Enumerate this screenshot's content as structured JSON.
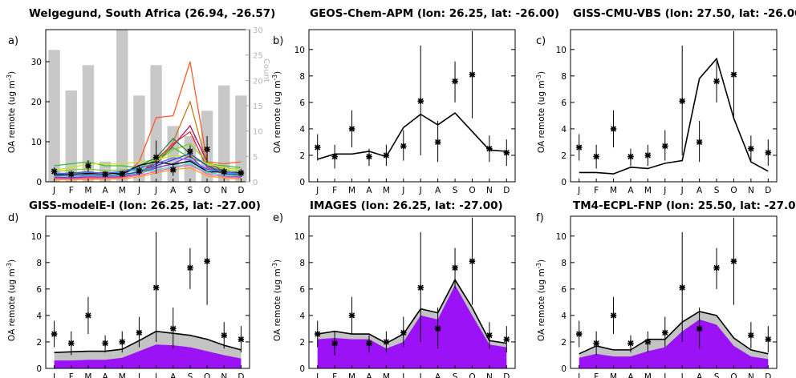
{
  "months": [
    "J",
    "F",
    "M",
    "A",
    "M",
    "J",
    "J",
    "A",
    "S",
    "O",
    "N",
    "D"
  ],
  "colors": {
    "obs": "#000000",
    "bars": "#c8c8c8",
    "area_top": "#c3c3c3",
    "area_bottom": "#9a12f5",
    "model_line": "#000000"
  },
  "chart_data": [
    {
      "panel_letter": "a)",
      "type": "line",
      "title": "Welgegund, South Africa (26.94, -26.57)",
      "ylabel": "OA remote (ug m",
      "ylabel_sup": "-3",
      "ylabel_tail": ")",
      "ylim": [
        0,
        38
      ],
      "yticks": [
        0,
        10,
        20,
        30
      ],
      "right_axis": {
        "label": "Count",
        "ylim": [
          0,
          30
        ],
        "yticks": [
          0,
          5,
          10,
          15,
          20,
          25,
          30
        ]
      },
      "bar_counts": [
        26,
        18,
        23,
        4,
        30,
        17,
        23,
        11,
        9,
        14,
        19,
        17
      ],
      "observations": {
        "mean": [
          2.6,
          1.9,
          4.0,
          1.9,
          2.0,
          2.7,
          6.1,
          3.0,
          7.6,
          8.1,
          2.5,
          2.2
        ],
        "low": [
          1.6,
          1.0,
          2.6,
          1.2,
          1.2,
          1.6,
          2.0,
          1.5,
          6.0,
          4.8,
          1.5,
          1.2
        ],
        "high": [
          3.6,
          2.8,
          5.4,
          2.5,
          2.8,
          3.9,
          10.3,
          4.6,
          9.1,
          11.4,
          3.5,
          3.2
        ]
      },
      "series": [
        {
          "color": "#ff5a2a",
          "values": [
            0.7,
            0.6,
            0.8,
            0.9,
            1.0,
            5.0,
            16.0,
            16.5,
            30.0,
            5.0,
            4.5,
            5.0
          ]
        },
        {
          "color": "#c07a20",
          "values": [
            1.0,
            1.0,
            1.2,
            1.3,
            1.3,
            2.0,
            4.0,
            10.0,
            20.0,
            4.0,
            3.5,
            3.0
          ]
        },
        {
          "color": "#b01060",
          "values": [
            1.5,
            1.4,
            1.8,
            1.8,
            1.6,
            2.5,
            4.5,
            9.0,
            14.0,
            5.0,
            2.5,
            2.0
          ]
        },
        {
          "color": "#e03030",
          "values": [
            1.0,
            0.9,
            1.1,
            1.1,
            1.2,
            2.0,
            5.5,
            9.5,
            12.5,
            3.5,
            2.0,
            1.6
          ]
        },
        {
          "color": "#30c030",
          "values": [
            4.0,
            4.5,
            5.0,
            4.0,
            4.0,
            3.5,
            5.5,
            8.5,
            6.0,
            4.5,
            4.0,
            3.5
          ]
        },
        {
          "color": "#80d020",
          "values": [
            2.5,
            3.0,
            3.2,
            2.8,
            3.0,
            3.2,
            5.0,
            8.0,
            9.5,
            5.0,
            3.0,
            2.5
          ]
        },
        {
          "color": "#d0e020",
          "values": [
            3.0,
            3.5,
            4.5,
            4.5,
            4.5,
            5.0,
            5.5,
            6.5,
            6.5,
            4.5,
            3.5,
            3.0
          ]
        },
        {
          "color": "#208040",
          "values": [
            2.0,
            2.2,
            2.5,
            2.0,
            2.3,
            4.0,
            6.0,
            10.8,
            7.0,
            4.0,
            2.5,
            2.2
          ]
        },
        {
          "color": "#2050c0",
          "values": [
            1.6,
            1.4,
            1.7,
            1.5,
            1.8,
            2.5,
            4.0,
            5.5,
            7.0,
            4.0,
            2.0,
            1.8
          ]
        },
        {
          "color": "#20b0e0",
          "values": [
            2.0,
            1.8,
            2.2,
            2.0,
            2.4,
            3.0,
            3.5,
            4.5,
            5.0,
            3.0,
            2.2,
            2.0
          ]
        },
        {
          "color": "#a020d0",
          "values": [
            1.2,
            1.0,
            1.3,
            1.2,
            1.4,
            2.0,
            3.5,
            4.5,
            6.5,
            2.5,
            1.5,
            1.2
          ]
        },
        {
          "color": "#ff60c0",
          "values": [
            0.8,
            0.7,
            1.0,
            0.9,
            1.0,
            1.6,
            2.6,
            3.5,
            4.2,
            2.0,
            1.2,
            0.9
          ]
        },
        {
          "color": "#000000",
          "values": [
            1.7,
            1.9,
            2.1,
            2.3,
            1.9,
            4.1,
            5.0,
            4.3,
            5.2,
            2.5,
            2.4,
            2.3
          ]
        },
        {
          "color": "#40e0c0",
          "values": [
            1.4,
            1.3,
            1.5,
            1.4,
            1.5,
            2.2,
            3.0,
            3.8,
            4.5,
            2.4,
            1.6,
            1.4
          ]
        },
        {
          "color": "#ffa020",
          "values": [
            0.5,
            0.5,
            0.6,
            0.6,
            0.7,
            1.2,
            2.2,
            3.0,
            3.5,
            1.5,
            0.9,
            0.6
          ]
        },
        {
          "color": "#6060ff",
          "values": [
            2.2,
            2.0,
            2.4,
            2.2,
            2.6,
            3.4,
            4.5,
            6.0,
            5.5,
            3.2,
            2.4,
            2.1
          ]
        }
      ]
    },
    {
      "panel_letter": "b)",
      "type": "line",
      "title": "GEOS-Chem-APM (lon: 26.25, lat: -26.00)",
      "ylabel": "OA remote (ug m",
      "ylabel_sup": "-3",
      "ylabel_tail": ")",
      "ylim": [
        0,
        11.5
      ],
      "yticks": [
        0,
        2,
        4,
        6,
        8,
        10
      ],
      "observations": {
        "mean": [
          2.6,
          1.9,
          4.0,
          1.9,
          2.0,
          2.7,
          6.1,
          3.0,
          7.6,
          8.1,
          2.5,
          2.2
        ],
        "low": [
          1.6,
          1.0,
          2.6,
          1.2,
          1.2,
          1.6,
          2.0,
          1.5,
          6.0,
          4.8,
          1.5,
          1.2
        ],
        "high": [
          3.6,
          2.8,
          5.4,
          2.5,
          2.8,
          3.9,
          10.3,
          4.6,
          9.1,
          11.4,
          3.5,
          3.2
        ]
      },
      "model_total": [
        1.7,
        2.1,
        2.1,
        2.3,
        1.9,
        4.1,
        5.1,
        4.3,
        5.2,
        3.8,
        2.4,
        2.3
      ]
    },
    {
      "panel_letter": "c)",
      "type": "line",
      "title": "GISS-CMU-VBS (lon: 27.50, lat: -26.00)",
      "ylabel": "OA remote (ug m",
      "ylabel_sup": "-3",
      "ylabel_tail": ")",
      "ylim": [
        0,
        11.5
      ],
      "yticks": [
        0,
        2,
        4,
        6,
        8,
        10
      ],
      "observations": {
        "mean": [
          2.6,
          1.9,
          4.0,
          1.9,
          2.0,
          2.7,
          6.1,
          3.0,
          7.6,
          8.1,
          2.5,
          2.2
        ],
        "low": [
          1.6,
          1.0,
          2.6,
          1.2,
          1.2,
          1.6,
          2.0,
          1.5,
          6.0,
          4.8,
          1.5,
          1.2
        ],
        "high": [
          3.6,
          2.8,
          5.4,
          2.5,
          2.8,
          3.9,
          10.3,
          4.6,
          9.1,
          11.4,
          3.5,
          3.2
        ]
      },
      "model_total": [
        0.7,
        0.7,
        0.6,
        1.1,
        1.0,
        1.4,
        1.6,
        7.8,
        9.3,
        4.8,
        1.5,
        0.8
      ]
    },
    {
      "panel_letter": "d)",
      "type": "area",
      "title": "GISS-modelE-I (lon: 26.25, lat: -27.00)",
      "ylabel": "OA remote (ug m",
      "ylabel_sup": "-3",
      "ylabel_tail": ")",
      "ylim": [
        0,
        11.5
      ],
      "yticks": [
        0,
        2,
        4,
        6,
        8,
        10
      ],
      "observations": {
        "mean": [
          2.6,
          1.9,
          4.0,
          1.9,
          2.0,
          2.7,
          6.1,
          3.0,
          7.6,
          8.1,
          2.5,
          2.2
        ],
        "low": [
          1.6,
          1.0,
          2.6,
          1.2,
          1.2,
          1.6,
          2.0,
          1.5,
          6.0,
          4.8,
          1.5,
          1.2
        ],
        "high": [
          3.6,
          2.8,
          5.4,
          2.5,
          2.8,
          3.9,
          10.3,
          4.6,
          9.1,
          11.4,
          3.5,
          3.2
        ]
      },
      "model_total": [
        1.2,
        1.25,
        1.3,
        1.3,
        1.45,
        2.1,
        2.8,
        2.65,
        2.5,
        2.2,
        1.75,
        1.4
      ],
      "model_bottom": [
        0.6,
        0.6,
        0.65,
        0.65,
        0.8,
        1.3,
        1.8,
        1.75,
        1.6,
        1.3,
        1.0,
        0.75
      ]
    },
    {
      "panel_letter": "e)",
      "type": "area",
      "title": "IMAGES (lon: 26.25, lat: -27.00)",
      "ylabel": "OA remote (ug m",
      "ylabel_sup": "-3",
      "ylabel_tail": ")",
      "ylim": [
        0,
        11.5
      ],
      "yticks": [
        0,
        2,
        4,
        6,
        8,
        10
      ],
      "observations": {
        "mean": [
          2.6,
          1.9,
          4.0,
          1.9,
          2.0,
          2.7,
          6.1,
          3.0,
          7.6,
          8.1,
          2.5,
          2.2
        ],
        "low": [
          1.6,
          1.0,
          2.6,
          1.2,
          1.2,
          1.6,
          2.0,
          1.5,
          6.0,
          4.8,
          1.5,
          1.2
        ],
        "high": [
          3.6,
          2.8,
          5.4,
          2.5,
          2.8,
          3.9,
          10.3,
          4.6,
          9.1,
          11.4,
          3.5,
          3.2
        ]
      },
      "model_total": [
        2.6,
        2.8,
        2.6,
        2.6,
        1.9,
        2.6,
        4.5,
        4.2,
        6.7,
        4.6,
        2.1,
        1.9
      ],
      "model_bottom": [
        2.2,
        2.3,
        2.2,
        2.2,
        1.5,
        2.0,
        4.0,
        3.7,
        6.3,
        4.0,
        1.8,
        1.6
      ]
    },
    {
      "panel_letter": "f)",
      "type": "area",
      "title": "TM4-ECPL-FNP (lon: 25.50, lat: -27.00)",
      "ylabel": "OA remote (ug m",
      "ylabel_sup": "-3",
      "ylabel_tail": ")",
      "ylim": [
        0,
        11.5
      ],
      "yticks": [
        0,
        2,
        4,
        6,
        8,
        10
      ],
      "observations": {
        "mean": [
          2.6,
          1.9,
          4.0,
          1.9,
          2.0,
          2.7,
          6.1,
          3.0,
          7.6,
          8.1,
          2.5,
          2.2
        ],
        "low": [
          1.6,
          1.0,
          2.6,
          1.2,
          1.2,
          1.6,
          2.0,
          1.5,
          6.0,
          4.8,
          1.5,
          1.2
        ],
        "high": [
          3.6,
          2.8,
          5.4,
          2.5,
          2.8,
          3.9,
          10.3,
          4.6,
          9.1,
          11.4,
          3.5,
          3.2
        ]
      },
      "model_total": [
        1.1,
        1.7,
        1.4,
        1.4,
        2.2,
        2.2,
        3.5,
        4.3,
        4.0,
        2.3,
        1.4,
        1.1
      ],
      "model_bottom": [
        0.8,
        1.1,
        0.9,
        0.9,
        1.3,
        1.6,
        2.8,
        3.7,
        3.3,
        1.7,
        0.9,
        0.7
      ]
    }
  ]
}
